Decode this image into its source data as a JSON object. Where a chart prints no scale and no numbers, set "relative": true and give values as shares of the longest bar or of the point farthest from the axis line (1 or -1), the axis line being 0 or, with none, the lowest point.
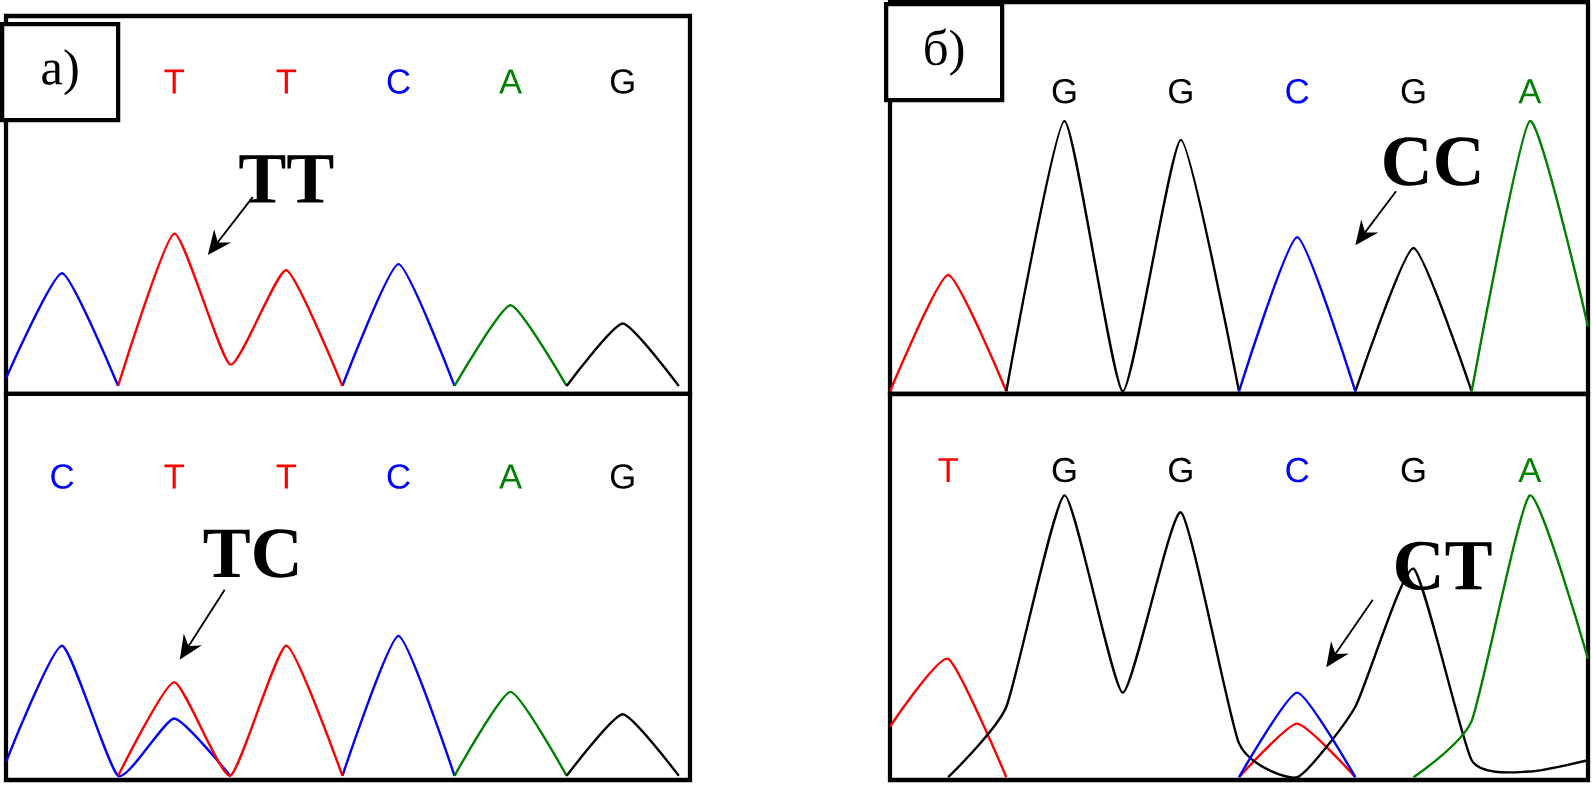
{
  "chart_data": [
    {
      "type": "line",
      "title": "а)",
      "relative": true,
      "categories": [
        null,
        null,
        null,
        "T",
        null,
        "T",
        null,
        "C",
        null,
        "A",
        null,
        "G",
        null
      ],
      "annotations": [
        "TT"
      ],
      "series": [
        {
          "color": "#0000ff",
          "values": [
            0.05,
            0.74,
            0,
            null,
            null,
            null,
            0,
            0.8,
            0,
            null,
            null,
            null,
            null
          ]
        },
        {
          "color": "#ff0000",
          "values": [
            null,
            null,
            0,
            1,
            0.14,
            0.76,
            0,
            null,
            null,
            null,
            null,
            null,
            null
          ]
        },
        {
          "color": "#008000",
          "values": [
            null,
            null,
            null,
            null,
            null,
            null,
            null,
            null,
            0,
            0.53,
            0,
            null,
            null
          ]
        },
        {
          "color": "#000000",
          "values": [
            null,
            null,
            null,
            null,
            null,
            null,
            null,
            null,
            null,
            null,
            0,
            0.41,
            0
          ]
        }
      ]
    },
    {
      "type": "line",
      "relative": true,
      "categories": [
        null,
        "C",
        null,
        "T",
        null,
        "T",
        null,
        "C",
        null,
        "A",
        null,
        "G",
        null
      ],
      "annotations": [
        "TC"
      ],
      "series": [
        {
          "color": "#0000ff",
          "values": [
            0.1,
            0.93,
            0,
            0.41,
            0,
            null,
            0,
            1,
            0,
            null,
            null,
            null,
            null
          ]
        },
        {
          "color": "#ff0000",
          "values": [
            null,
            null,
            0,
            0.67,
            0,
            0.93,
            0,
            null,
            null,
            null,
            null,
            null,
            null
          ]
        },
        {
          "color": "#008000",
          "values": [
            null,
            null,
            null,
            null,
            null,
            null,
            null,
            null,
            0,
            0.6,
            0,
            null,
            null
          ]
        },
        {
          "color": "#000000",
          "values": [
            null,
            null,
            null,
            null,
            null,
            null,
            null,
            null,
            null,
            null,
            0,
            0.44,
            0
          ]
        }
      ]
    },
    {
      "type": "line",
      "title": "б)",
      "relative": true,
      "categories": [
        null,
        null,
        null,
        "G",
        null,
        "G",
        null,
        "C",
        null,
        "G",
        null,
        "A",
        null
      ],
      "annotations": [
        "CC"
      ],
      "series": [
        {
          "color": "#ff0000",
          "values": [
            0,
            0.43,
            0,
            null,
            null,
            null,
            null,
            null,
            null,
            null,
            null,
            null,
            null
          ]
        },
        {
          "color": "#000000",
          "values": [
            null,
            null,
            0,
            1,
            0,
            0.93,
            0,
            null,
            0,
            0.53,
            0,
            null,
            null
          ]
        },
        {
          "color": "#0000ff",
          "values": [
            null,
            null,
            null,
            null,
            null,
            null,
            0,
            0.57,
            0,
            null,
            null,
            null,
            null
          ]
        },
        {
          "color": "#008000",
          "values": [
            null,
            null,
            null,
            null,
            null,
            null,
            null,
            null,
            null,
            null,
            0,
            1,
            0.24
          ]
        }
      ]
    },
    {
      "type": "line",
      "relative": true,
      "categories": [
        null,
        "T",
        null,
        "G",
        null,
        "G",
        null,
        "C",
        null,
        "G",
        null,
        "A",
        null
      ],
      "annotations": [
        "CT"
      ],
      "series": [
        {
          "color": "#ff0000",
          "values": [
            0.18,
            0.42,
            0,
            null,
            null,
            null,
            0,
            0.19,
            0,
            null,
            null,
            null,
            null
          ]
        },
        {
          "color": "#000000",
          "values": [
            null,
            0,
            0.25,
            1,
            0.3,
            0.94,
            0.12,
            0,
            0.25,
            0.74,
            0.06,
            0.02,
            0.06
          ]
        },
        {
          "color": "#0000ff",
          "values": [
            null,
            null,
            null,
            null,
            null,
            null,
            0,
            0.3,
            0,
            null,
            null,
            null,
            null
          ]
        },
        {
          "color": "#008000",
          "values": [
            null,
            null,
            null,
            null,
            null,
            null,
            null,
            null,
            null,
            0,
            0.2,
            1,
            0.42
          ]
        }
      ]
    }
  ]
}
